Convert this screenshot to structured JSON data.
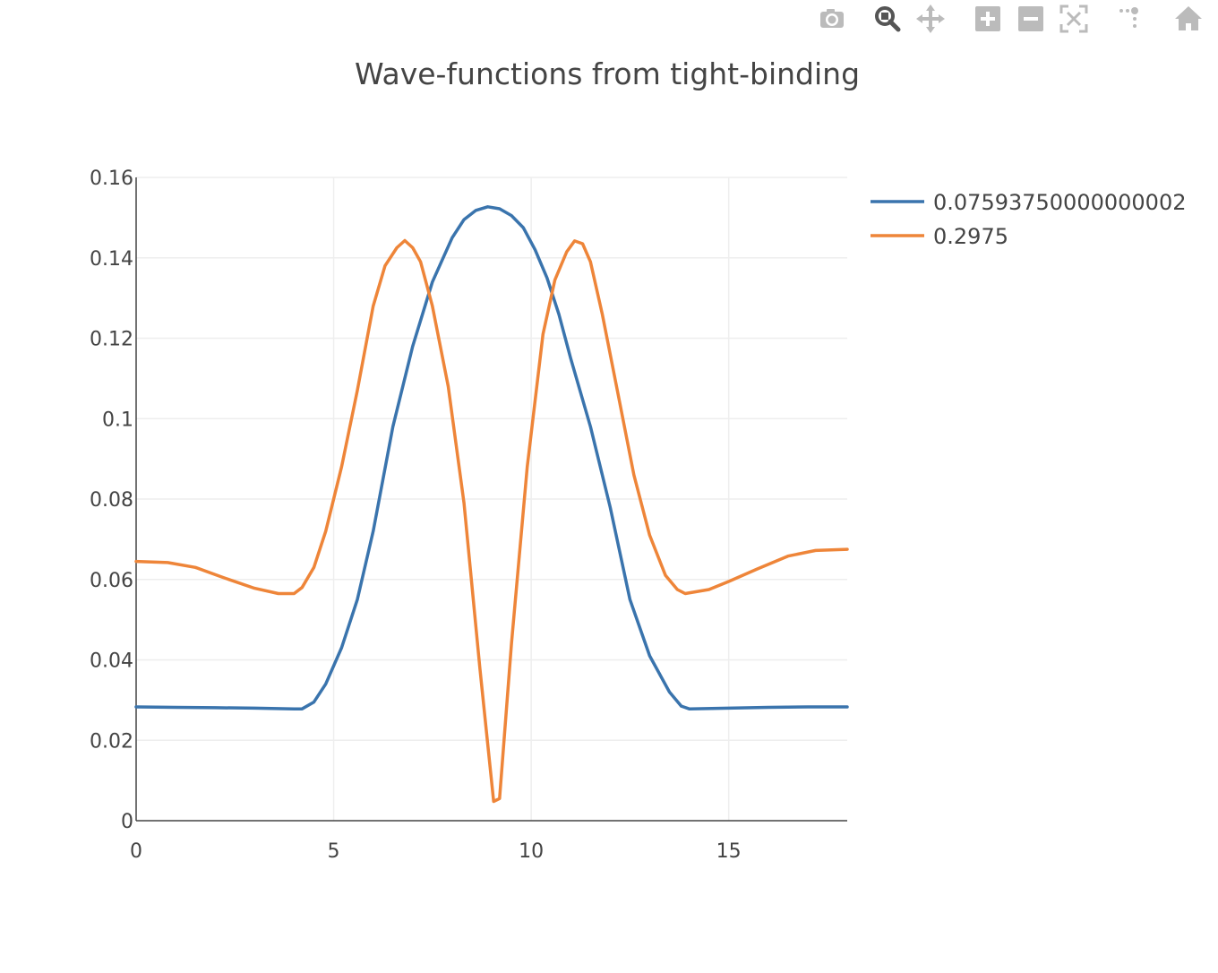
{
  "modebar": {
    "buttons": [
      {
        "name": "download-plot-button",
        "icon": "camera-icon"
      },
      {
        "name": "zoom-button",
        "icon": "zoom-icon",
        "active": true
      },
      {
        "name": "pan-button",
        "icon": "pan-icon"
      },
      {
        "name": "zoom-in-button",
        "icon": "zoom-in-icon"
      },
      {
        "name": "zoom-out-button",
        "icon": "zoom-out-icon"
      },
      {
        "name": "autoscale-button",
        "icon": "autoscale-icon"
      },
      {
        "name": "reset-axes-button",
        "icon": "reset-axes-icon"
      },
      {
        "name": "home-button",
        "icon": "home-icon"
      }
    ]
  },
  "chart_data": {
    "type": "line",
    "title": "Wave-functions from tight-binding",
    "xlabel": "",
    "ylabel": "",
    "xlim": [
      0,
      18
    ],
    "ylim": [
      0,
      0.16
    ],
    "x_ticks": [
      0,
      5,
      10,
      15
    ],
    "x_tick_labels": [
      "0",
      "5",
      "10",
      "15"
    ],
    "y_ticks": [
      0,
      0.02,
      0.04,
      0.06,
      0.08,
      0.1,
      0.12,
      0.14,
      0.16
    ],
    "y_tick_labels": [
      "0",
      "0.02",
      "0.04",
      "0.06",
      "0.08",
      "0.1",
      "0.12",
      "0.14",
      "0.16"
    ],
    "grid": true,
    "legend_position": "top-right",
    "series": [
      {
        "name": "0.07593750000000002",
        "color": "#3a74ad",
        "x": [
          0,
          1,
          2,
          3,
          4,
          4.2,
          4.5,
          4.8,
          5.2,
          5.6,
          6.0,
          6.5,
          7.0,
          7.5,
          8.0,
          8.3,
          8.6,
          8.9,
          9.2,
          9.5,
          9.8,
          10.1,
          10.4,
          10.7,
          11.0,
          11.5,
          12.0,
          12.5,
          13.0,
          13.5,
          13.8,
          14.0,
          15,
          16,
          17,
          18
        ],
        "y": [
          0.0283,
          0.0282,
          0.0281,
          0.028,
          0.0278,
          0.0278,
          0.0295,
          0.034,
          0.043,
          0.055,
          0.072,
          0.098,
          0.118,
          0.134,
          0.145,
          0.1495,
          0.1518,
          0.1527,
          0.1522,
          0.1505,
          0.1475,
          0.142,
          0.135,
          0.126,
          0.115,
          0.098,
          0.078,
          0.055,
          0.041,
          0.032,
          0.0285,
          0.0278,
          0.028,
          0.0282,
          0.0283,
          0.0283
        ]
      },
      {
        "name": "0.2975",
        "color": "#ee8539",
        "x": [
          0,
          0.8,
          1.5,
          2.2,
          3.0,
          3.6,
          4.0,
          4.2,
          4.5,
          4.8,
          5.2,
          5.6,
          6.0,
          6.3,
          6.6,
          6.8,
          7.0,
          7.2,
          7.5,
          7.9,
          8.3,
          8.7,
          8.9,
          9.05,
          9.2,
          9.5,
          9.9,
          10.3,
          10.6,
          10.9,
          11.1,
          11.3,
          11.5,
          11.8,
          12.2,
          12.6,
          13.0,
          13.4,
          13.7,
          13.9,
          14.5,
          15.0,
          15.7,
          16.5,
          17.2,
          18
        ],
        "y": [
          0.0645,
          0.0642,
          0.063,
          0.0605,
          0.0578,
          0.0565,
          0.0565,
          0.058,
          0.063,
          0.072,
          0.088,
          0.107,
          0.128,
          0.138,
          0.1425,
          0.1443,
          0.1425,
          0.139,
          0.128,
          0.108,
          0.079,
          0.038,
          0.019,
          0.0048,
          0.0055,
          0.044,
          0.088,
          0.121,
          0.1345,
          0.1415,
          0.1442,
          0.1435,
          0.139,
          0.126,
          0.106,
          0.086,
          0.071,
          0.061,
          0.0575,
          0.0565,
          0.0575,
          0.0595,
          0.0625,
          0.0658,
          0.0672,
          0.0675
        ]
      }
    ]
  }
}
